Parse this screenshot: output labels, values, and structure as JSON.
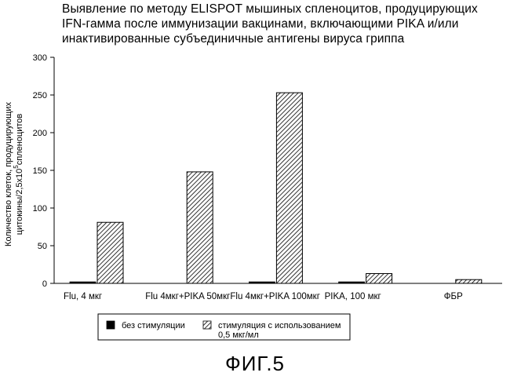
{
  "title_lines": [
    "Выявление по методу ELISPOT мышиных спленоцитов, продуцирующих",
    "IFN-гамма после иммунизации вакцинами, включающими PIKA и/или",
    "инактивированные субъединичные антигены вируса гриппа"
  ],
  "figure_label": "ФИГ.5",
  "chart_data": {
    "type": "bar",
    "title": "Выявление по методу ELISPOT мышиных спленоцитов, продуцирующих IFN-гамма после иммунизации вакцинами, включающими PIKA и/или инактивированные субъединичные антигены вируса гриппа",
    "categories": [
      "Flu, 4 мкг",
      "Flu 4мкг+PIKA 50мкг",
      "Flu 4мкг+PIKA 100мкг",
      "PIKA, 100 мкг",
      "ФБР"
    ],
    "series": [
      {
        "name": "без стимуляции",
        "values": [
          2,
          0,
          2,
          2,
          0
        ],
        "color": "#000000",
        "pattern": "solid"
      },
      {
        "name": "стимуляция с использованием 0,5 мкг/мл",
        "values": [
          81,
          148,
          253,
          13,
          5
        ],
        "color": "#ffffff",
        "pattern": "hatched"
      }
    ],
    "ylabel_lines": [
      "Количество клеток, продуцирующих",
      "цитокины/2,5x10^5спленоцитов"
    ],
    "ylim": [
      0,
      300
    ],
    "yticks": [
      0,
      50,
      100,
      150,
      200,
      250,
      300
    ],
    "grid": false,
    "legend_position": "bottom"
  }
}
